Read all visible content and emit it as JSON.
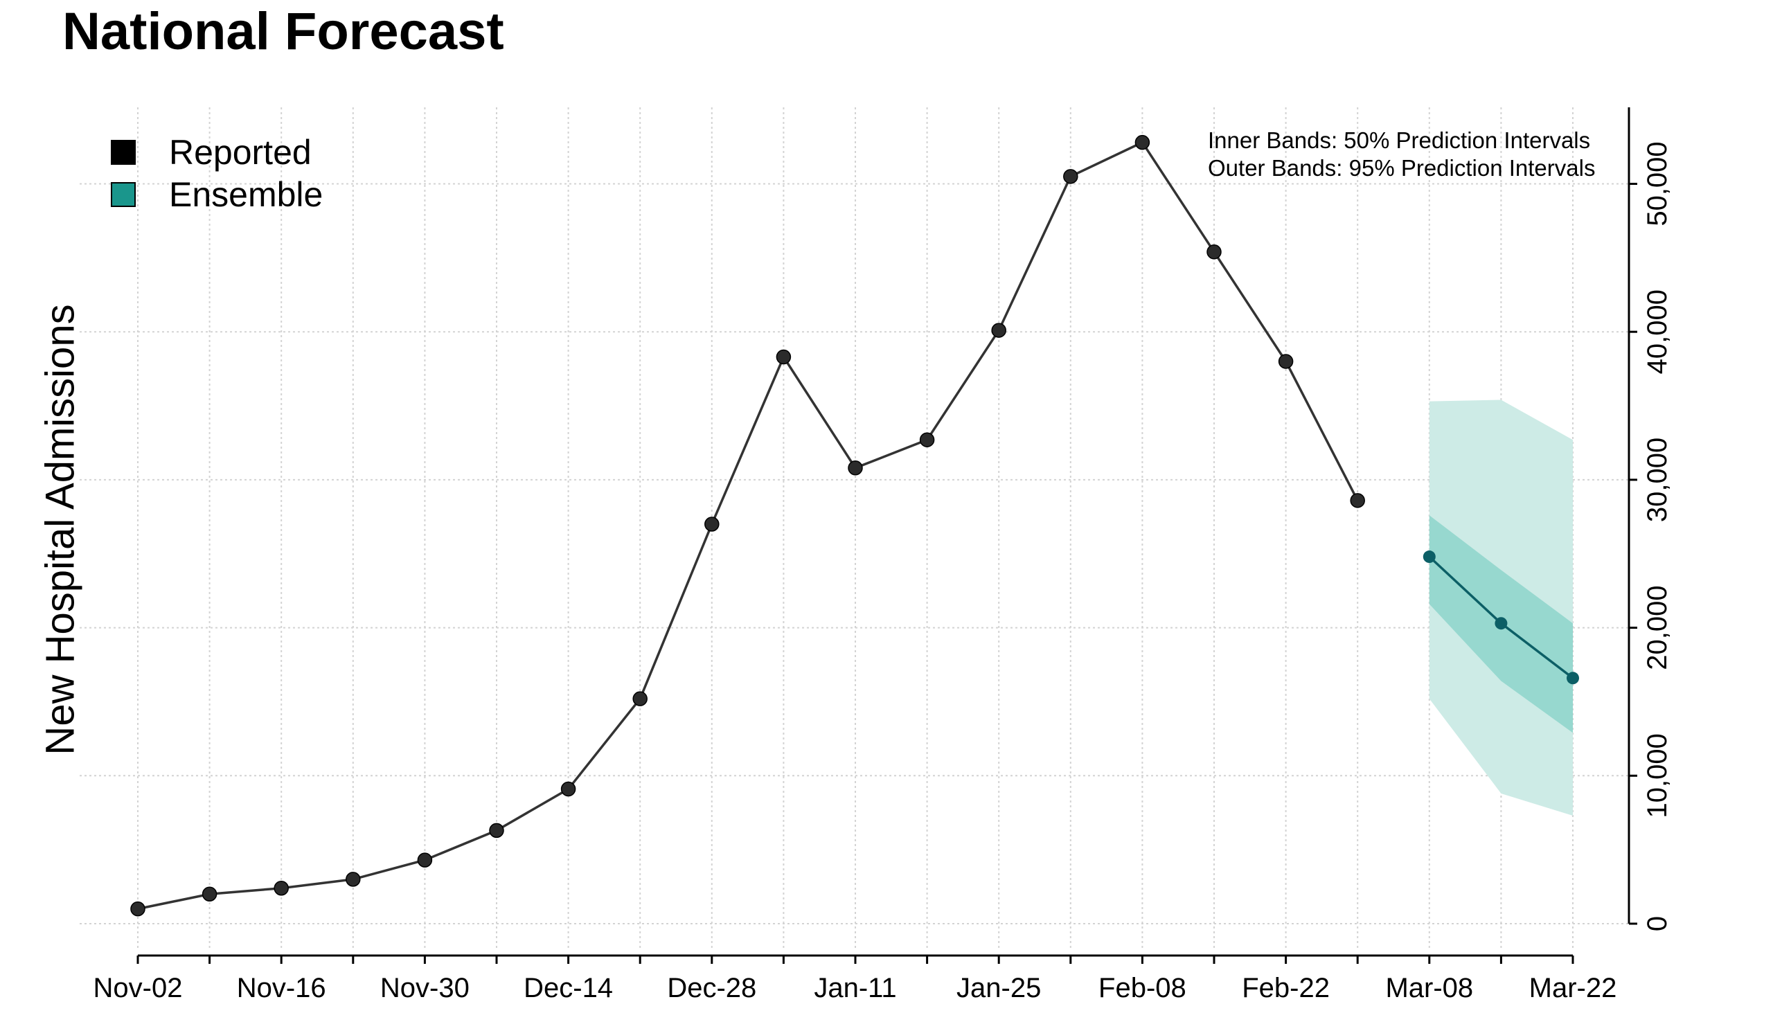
{
  "title": "National Forecast",
  "legend": [
    {
      "label": "Reported",
      "color": "#000000"
    },
    {
      "label": "Ensemble",
      "color": "#1a968c"
    }
  ],
  "notes": [
    "Inner Bands: 50% Prediction Intervals",
    "Outer Bands: 95% Prediction Intervals"
  ],
  "ylabel": "New Hospital Admissions",
  "colors": {
    "reported_line": "#333333",
    "reported_point": "#2b2b2b",
    "ensemble_line": "#0c5f66",
    "band95": "#cdebe6",
    "band50": "#97d8cf",
    "grid": "#d3d3d3"
  },
  "chart_data": {
    "type": "line",
    "title": "National Forecast",
    "ylabel": "New Hospital Admissions",
    "xlabel": "",
    "x_tick_labels": [
      "Nov-02",
      "Nov-16",
      "Nov-30",
      "Dec-14",
      "Dec-28",
      "Jan-11",
      "Jan-25",
      "Feb-08",
      "Feb-22",
      "Mar-08",
      "Mar-22"
    ],
    "y_ticks": [
      0,
      10000,
      20000,
      30000,
      40000,
      50000
    ],
    "y_tick_labels": [
      "0",
      "10,000",
      "20,000",
      "30,000",
      "40,000",
      "50,000"
    ],
    "ylim": [
      -1000,
      55500
    ],
    "x_dates": [
      "Nov-02",
      "Nov-09",
      "Nov-16",
      "Nov-23",
      "Nov-30",
      "Dec-07",
      "Dec-14",
      "Dec-21",
      "Dec-28",
      "Jan-04",
      "Jan-11",
      "Jan-18",
      "Jan-25",
      "Feb-01",
      "Feb-08",
      "Feb-15",
      "Feb-22",
      "Mar-01",
      "Mar-08",
      "Mar-15",
      "Mar-22"
    ],
    "grid": true,
    "legend_position": "top-left",
    "series": [
      {
        "name": "Reported",
        "x": [
          "Nov-02",
          "Nov-09",
          "Nov-16",
          "Nov-23",
          "Nov-30",
          "Dec-07",
          "Dec-14",
          "Dec-21",
          "Dec-28",
          "Jan-04",
          "Jan-11",
          "Jan-18",
          "Jan-25",
          "Feb-01",
          "Feb-08",
          "Feb-15",
          "Feb-22",
          "Mar-01"
        ],
        "values": [
          1000,
          2000,
          2400,
          3000,
          4300,
          6300,
          9100,
          15200,
          27000,
          38300,
          30800,
          32700,
          40100,
          50500,
          52800,
          45400,
          38000,
          28600
        ]
      },
      {
        "name": "Ensemble",
        "x": [
          "Mar-08",
          "Mar-15",
          "Mar-22"
        ],
        "values": [
          24800,
          20300,
          16600
        ],
        "pi50_lower": [
          21600,
          16400,
          12900
        ],
        "pi50_upper": [
          27600,
          23900,
          20300
        ],
        "pi95_lower": [
          15200,
          8800,
          7300
        ],
        "pi95_upper": [
          35300,
          35400,
          32700
        ]
      }
    ]
  }
}
